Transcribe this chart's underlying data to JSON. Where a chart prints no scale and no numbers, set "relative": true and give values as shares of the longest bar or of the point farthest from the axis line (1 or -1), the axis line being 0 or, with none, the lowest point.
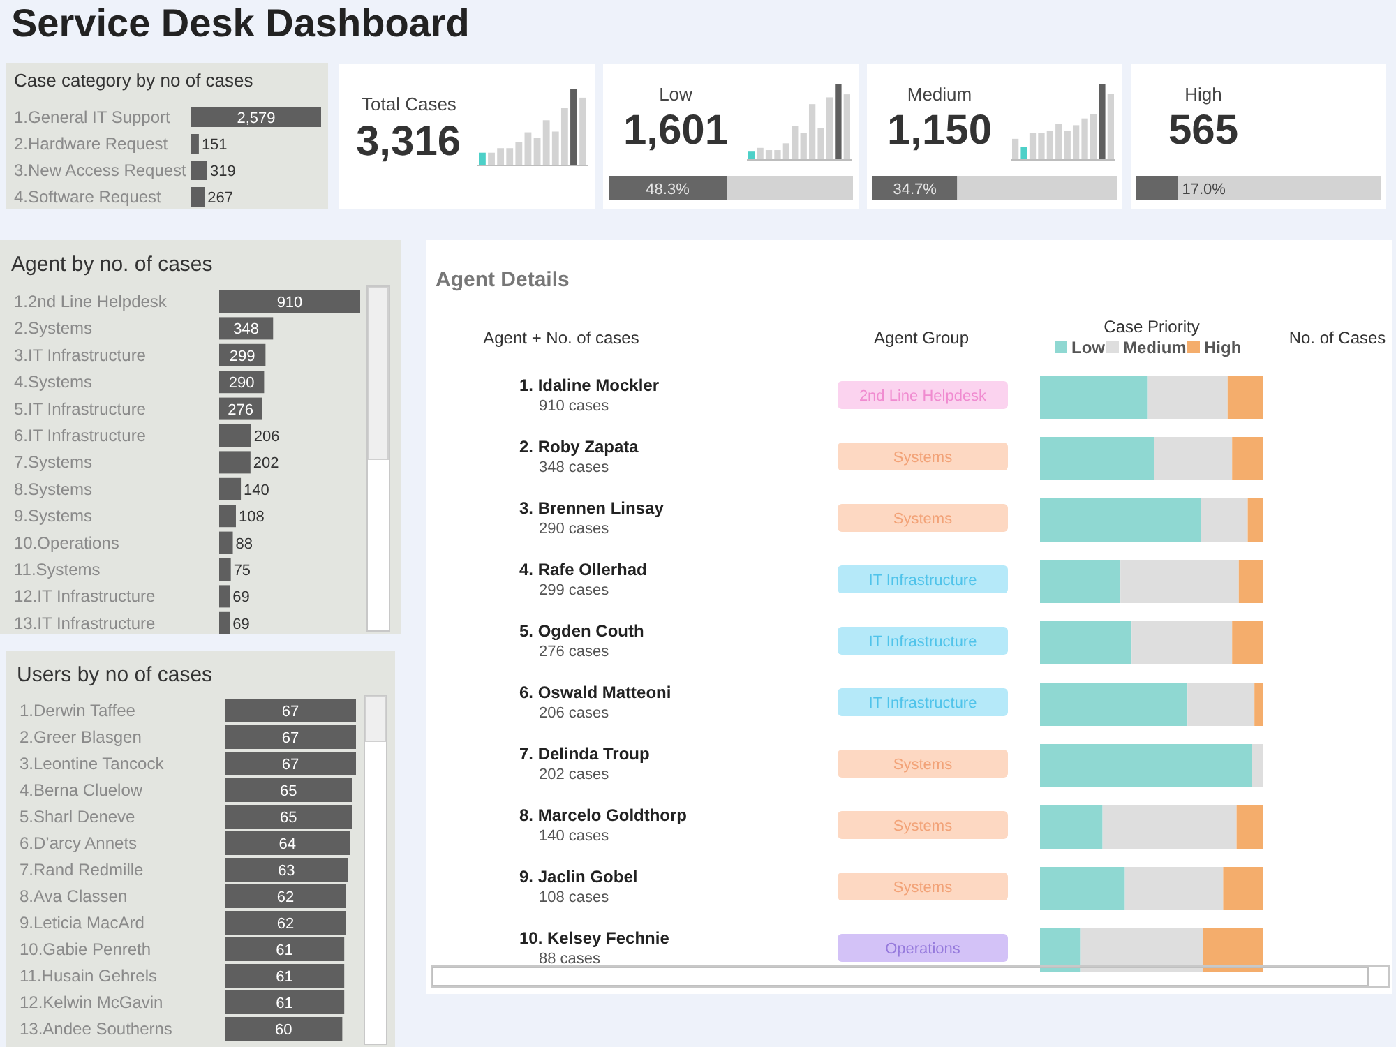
{
  "chart_data": [
    {
      "type": "other",
      "title": "Service Desk Dashboard"
    },
    {
      "type": "bar",
      "orientation": "horizontal",
      "title": "Case category by no of  cases",
      "categories": [
        "1.General IT Support",
        "2.Hardware Request",
        "3.New Access Request",
        "4.Software Request"
      ],
      "values": [
        2579,
        151,
        319,
        267
      ],
      "value_labels": [
        "2,579",
        "151",
        "319",
        "267"
      ],
      "color": "#5f5f5f",
      "data_labels": true
    },
    {
      "type": "bar",
      "relative": true,
      "title": "Total Cases",
      "annotations": [
        "3,316"
      ],
      "categories": [
        null,
        null,
        null,
        null,
        null,
        null,
        null,
        null,
        null,
        null,
        null,
        null
      ],
      "values": [
        0.16,
        0.16,
        0.22,
        0.22,
        0.3,
        0.43,
        0.36,
        0.59,
        0.44,
        0.75,
        1,
        0.89
      ],
      "colors": [
        "#4dd0c8",
        "#d3d3d3",
        "#d3d3d3",
        "#d3d3d3",
        "#d3d3d3",
        "#d3d3d3",
        "#d3d3d3",
        "#d3d3d3",
        "#d3d3d3",
        "#d3d3d3",
        "#5f5f5f",
        "#d3d3d3"
      ]
    },
    {
      "type": "bar",
      "relative": true,
      "title": "Low",
      "annotations": [
        "1,601"
      ],
      "categories": [
        null,
        null,
        null,
        null,
        null,
        null,
        null,
        null,
        null,
        null,
        null,
        null
      ],
      "values": [
        0.1,
        0.15,
        0.12,
        0.12,
        0.21,
        0.44,
        0.35,
        0.73,
        0.41,
        0.82,
        1,
        0.86
      ],
      "colors": [
        "#4dd0c8",
        "#d3d3d3",
        "#d3d3d3",
        "#d3d3d3",
        "#d3d3d3",
        "#d3d3d3",
        "#d3d3d3",
        "#d3d3d3",
        "#d3d3d3",
        "#d3d3d3",
        "#5f5f5f",
        "#d3d3d3"
      ]
    },
    {
      "type": "bar",
      "orientation": "horizontal",
      "stacked": true,
      "categories": [
        null
      ],
      "series": [
        {
          "color": "#666666",
          "values": [
            48.3
          ],
          "value_labels": [
            "48.3%"
          ]
        },
        {
          "color": "#d3d3d3",
          "values": [
            51.7
          ]
        }
      ],
      "xlim": [
        0,
        100
      ],
      "tick_labels": false
    },
    {
      "type": "bar",
      "relative": true,
      "title": "Medium",
      "annotations": [
        "1,150"
      ],
      "categories": [
        null,
        null,
        null,
        null,
        null,
        null,
        null,
        null,
        null,
        null,
        null,
        null
      ],
      "values": [
        0.27,
        0.16,
        0.35,
        0.35,
        0.38,
        0.47,
        0.38,
        0.45,
        0.54,
        0.6,
        1,
        0.87
      ],
      "colors": [
        "#d3d3d3",
        "#4dd0c8",
        "#d3d3d3",
        "#d3d3d3",
        "#d3d3d3",
        "#d3d3d3",
        "#d3d3d3",
        "#d3d3d3",
        "#d3d3d3",
        "#d3d3d3",
        "#5f5f5f",
        "#d3d3d3"
      ]
    },
    {
      "type": "bar",
      "orientation": "horizontal",
      "stacked": true,
      "categories": [
        null
      ],
      "series": [
        {
          "color": "#666666",
          "values": [
            34.7
          ],
          "value_labels": [
            "34.7%"
          ]
        },
        {
          "color": "#d3d3d3",
          "values": [
            65.3
          ]
        }
      ],
      "xlim": [
        0,
        100
      ],
      "tick_labels": false
    },
    {
      "type": "other",
      "title": "High",
      "annotations": [
        "565"
      ]
    },
    {
      "type": "bar",
      "orientation": "horizontal",
      "stacked": true,
      "categories": [
        null
      ],
      "series": [
        {
          "color": "#666666",
          "values": [
            17.0
          ],
          "value_labels": [
            "17.0%"
          ]
        },
        {
          "color": "#d3d3d3",
          "values": [
            83.0
          ]
        }
      ],
      "xlim": [
        0,
        100
      ],
      "tick_labels": false
    },
    {
      "type": "bar",
      "orientation": "horizontal",
      "title": "Agent by no. of  cases",
      "categories": [
        "1.2nd Line Helpdesk",
        "2.Systems",
        "3.IT Infrastructure",
        "4.Systems",
        "5.IT Infrastructure",
        "6.IT Infrastructure",
        "7.Systems",
        "8.Systems",
        "9.Systems",
        "10.Operations",
        "11.Systems",
        "12.IT Infrastructure",
        "13.IT Infrastructure"
      ],
      "values": [
        910,
        348,
        299,
        290,
        276,
        206,
        202,
        140,
        108,
        88,
        75,
        69,
        69
      ],
      "color": "#5f5f5f",
      "data_labels": true
    },
    {
      "type": "bar",
      "orientation": "horizontal",
      "title": "Users by no of  cases",
      "categories": [
        "1.Derwin Taffee",
        "2.Greer Blasgen",
        "3.Leontine Tancock",
        "4.Berna Cluelow",
        "5.Sharl Deneve",
        "6.D’arcy Annets",
        "7.Rand Redmille",
        "8.Ava Classen",
        "9.Leticia MacArd",
        "10.Gabie Penreth",
        "11.Husain Gehrels",
        "12.Kelwin McGavin",
        "13.Andee Southerns"
      ],
      "values": [
        67,
        67,
        67,
        65,
        65,
        64,
        63,
        62,
        62,
        61,
        61,
        61,
        60
      ],
      "color": "#5f5f5f",
      "data_labels": true
    },
    {
      "type": "bar",
      "orientation": "horizontal",
      "stacked": true,
      "relative": true,
      "title": "Agent Details",
      "legend_title": "Case Priority",
      "legend": "top",
      "categories": [
        "1. Idaline Mockler\n910 cases",
        "2. Roby Zapata\n348 cases",
        "3. Brennen Linsay\n290 cases",
        "4. Rafe Ollerhad\n299 cases",
        "5. Ogden Couth\n276 cases",
        "6. Oswald Matteoni\n206 cases",
        "7. Delinda Troup\n202 cases",
        "8. Marcelo Goldthorp\n140 cases",
        "9. Jaclin Gobel\n108 cases",
        "10. Kelsey Fechnie\n88 cases"
      ],
      "series": [
        {
          "name": "Low",
          "color": "#8fd8d2",
          "values": [
            0.48,
            0.51,
            0.72,
            0.36,
            0.41,
            0.66,
            0.95,
            0.28,
            0.38,
            0.18
          ]
        },
        {
          "name": "Medium",
          "color": "#dedede",
          "values": [
            0.36,
            0.35,
            0.21,
            0.53,
            0.45,
            0.3,
            0.05,
            0.6,
            0.44,
            0.55
          ]
        },
        {
          "name": "High",
          "color": "#f4ad6c",
          "values": [
            0.16,
            0.14,
            0.07,
            0.11,
            0.14,
            0.04,
            0,
            0.12,
            0.18,
            0.27
          ]
        }
      ],
      "annotations": [
        "Agent + No. of cases",
        "Agent Group",
        "No. of Cases",
        "2nd Line Helpdesk",
        "Systems",
        "Systems",
        "IT Infrastructure",
        "IT Infrastructure",
        "IT Infrastructure",
        "Systems",
        "Systems",
        "Systems",
        "Operations"
      ]
    }
  ]
}
